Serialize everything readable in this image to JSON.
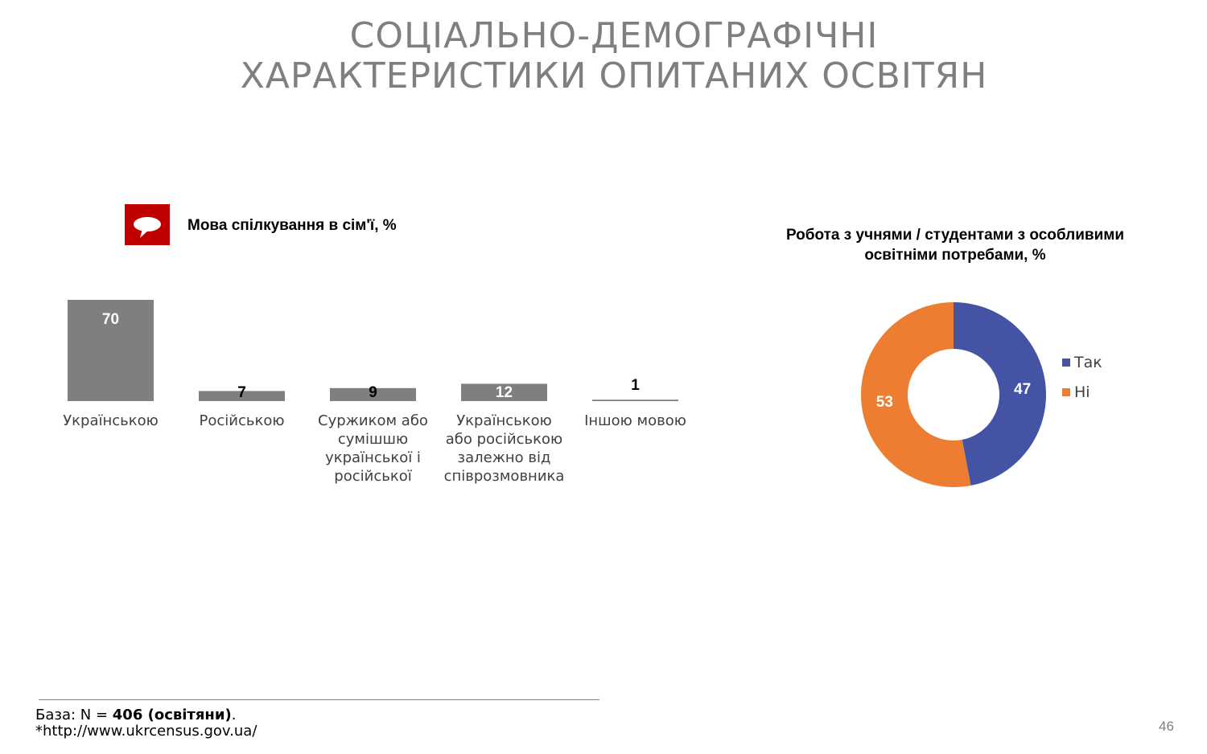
{
  "slide": {
    "title_line1": "СОЦІАЛЬНО-ДЕМОГРАФІЧНІ",
    "title_line2": "ХАРАКТЕРИСТИКИ ОПИТАНИХ ОСВІТЯН",
    "page_number": "46",
    "footer": {
      "base_prefix": "База: N = ",
      "base_value": "406 (освітяни)",
      "base_suffix": ".",
      "source": "*http://www.ukrcensus.gov.ua/"
    },
    "icon": "speech-bubble-icon",
    "colors": {
      "accent_red": "#c00000",
      "bar_gray": "#7f7f7f",
      "yes_blue": "#4453a3",
      "no_orange": "#ed7d31"
    }
  },
  "chart_data": [
    {
      "type": "bar",
      "title": "Мова спілкування в сім'ї, %",
      "categories": [
        [
          "Українською"
        ],
        [
          "Російською"
        ],
        [
          "Суржиком або",
          "сумішшю",
          "української і",
          "російської"
        ],
        [
          "Українською",
          "або російською",
          "залежно від",
          "співрозмовника"
        ],
        [
          "Іншою мовою"
        ]
      ],
      "values": [
        70,
        7,
        9,
        12,
        1
      ],
      "ylim": [
        0,
        70
      ]
    },
    {
      "type": "pie",
      "title": "Робота з учнями / студентами з особливими освітніми потребами, %",
      "labels": [
        "Так",
        "Ні"
      ],
      "values": [
        47,
        53
      ],
      "colors": [
        "#4453a3",
        "#ed7d31"
      ],
      "legend": "right",
      "donut": true
    }
  ]
}
